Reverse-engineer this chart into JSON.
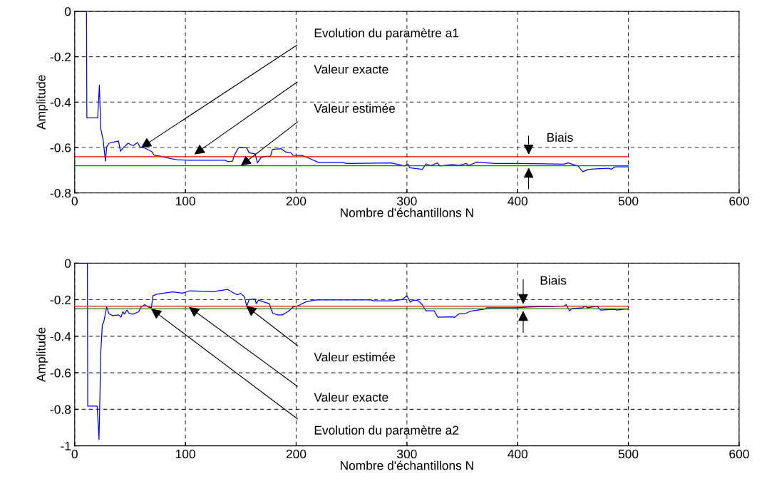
{
  "chart_data": [
    {
      "type": "line",
      "xlabel": "Nombre d'échantillons N",
      "ylabel": "Amplitude",
      "xlim": [
        0,
        600
      ],
      "ylim": [
        -0.8,
        0
      ],
      "xticks": [
        0,
        100,
        200,
        300,
        400,
        500,
        600
      ],
      "yticks": [
        -0.8,
        -0.6,
        -0.4,
        -0.2,
        0
      ],
      "grid": true,
      "legend": false,
      "marker": "none",
      "line_style": "solid",
      "series": [
        {
          "color": "#0000ff",
          "x": [
            0,
            10.7,
            11,
            20.8,
            22.3,
            23.6,
            25.7,
            27.8,
            28.9,
            31,
            35.3,
            39.6,
            41.3,
            43.9,
            48.2,
            52.9,
            56.7,
            58.9,
            63.2,
            69.6,
            71.8,
            78.2,
            86.8,
            93.2,
            103.9,
            136,
            138.2,
            142.5,
            144.2,
            147.8,
            151,
            155.4,
            157.5,
            162.9,
            165,
            168.2,
            172.5,
            176.8,
            178.5,
            186.5,
            190.8,
            195.1,
            197.2,
            205.2,
            211.7,
            220.3,
            241.8,
            246,
            286,
            297.9,
            301,
            302.6,
            308.6,
            314,
            317.2,
            321.5,
            327.5,
            330,
            340.8,
            347.2,
            353.6,
            355.8,
            363.3,
            368.7,
            379.4,
            398.7,
            441.6,
            445.5,
            454.5,
            458.8,
            464.2,
            471.7,
            482.4,
            484.5,
            487.8,
            500
          ],
          "values": [
            0,
            0,
            -0.469,
            -0.469,
            -0.326,
            -0.519,
            -0.566,
            -0.66,
            -0.597,
            -0.581,
            -0.576,
            -0.571,
            -0.616,
            -0.602,
            -0.581,
            -0.592,
            -0.578,
            -0.597,
            -0.602,
            -0.618,
            -0.634,
            -0.639,
            -0.649,
            -0.654,
            -0.656,
            -0.656,
            -0.662,
            -0.66,
            -0.634,
            -0.602,
            -0.599,
            -0.602,
            -0.623,
            -0.628,
            -0.668,
            -0.644,
            -0.639,
            -0.639,
            -0.608,
            -0.605,
            -0.62,
            -0.623,
            -0.634,
            -0.635,
            -0.647,
            -0.666,
            -0.666,
            -0.67,
            -0.668,
            -0.681,
            -0.673,
            -0.689,
            -0.693,
            -0.696,
            -0.672,
            -0.679,
            -0.668,
            -0.681,
            -0.675,
            -0.679,
            -0.67,
            -0.679,
            -0.664,
            -0.666,
            -0.67,
            -0.67,
            -0.673,
            -0.668,
            -0.681,
            -0.706,
            -0.696,
            -0.694,
            -0.691,
            -0.696,
            -0.685,
            -0.685
          ]
        },
        {
          "color": "#ff0000",
          "x": [
            0,
            500
          ],
          "values": [
            -0.64,
            -0.64
          ]
        },
        {
          "color": "#008000",
          "x": [
            0,
            500
          ],
          "values": [
            -0.68,
            -0.68
          ]
        }
      ],
      "annotations": [
        "Evolution du paramètre a1",
        "Valeur exacte",
        "Valeur estimée",
        {
          "text": "Biais",
          "x": 410,
          "y": -0.64
        }
      ]
    },
    {
      "type": "line",
      "xlabel": "Nombre d'échantillons N",
      "ylabel": "Amplitude",
      "xlim": [
        0,
        600
      ],
      "ylim": [
        -1,
        0
      ],
      "xticks": [
        0,
        100,
        200,
        300,
        400,
        500,
        600
      ],
      "yticks": [
        -1,
        -0.8,
        -0.6,
        -0.4,
        -0.2,
        0
      ],
      "grid": true,
      "legend": false,
      "marker": "none",
      "line_style": "solid",
      "series": [
        {
          "color": "#0000ff",
          "x": [
            0,
            11.5,
            11.8,
            20.3,
            22,
            23.6,
            25,
            26.1,
            28.9,
            31,
            34.3,
            39.6,
            41.8,
            43.5,
            45,
            47.1,
            49.3,
            52.5,
            57.8,
            60,
            63.2,
            66.4,
            69.2,
            70.7,
            73.9,
            82.5,
            88.9,
            97.4,
            103.9,
            125.3,
            138.2,
            142.5,
            146.8,
            150,
            153.2,
            155.4,
            157.5,
            162.9,
            163.9,
            166.1,
            170.4,
            175.7,
            178.9,
            183.2,
            187.5,
            192.9,
            197.2,
            202.4,
            208.8,
            217.3,
            267.8,
            270,
            287.1,
            295.7,
            300,
            303.2,
            305.4,
            309.7,
            313.9,
            317.2,
            324.7,
            327.9,
            340.8,
            342.9,
            347.2,
            353.6,
            356.9,
            364.4,
            370.8,
            371.9,
            398.7,
            409.4,
            441.6,
            443.8,
            447,
            449.1,
            458.8,
            461,
            463.1,
            471.7,
            474.9,
            486.7,
            489.9,
            497.4,
            500
          ],
          "values": [
            0,
            0,
            -0.783,
            -0.783,
            -0.965,
            -0.484,
            -0.335,
            -0.326,
            -0.24,
            -0.277,
            -0.287,
            -0.283,
            -0.296,
            -0.266,
            -0.279,
            -0.257,
            -0.275,
            -0.279,
            -0.266,
            -0.24,
            -0.227,
            -0.24,
            -0.244,
            -0.179,
            -0.17,
            -0.162,
            -0.157,
            -0.164,
            -0.151,
            -0.155,
            -0.144,
            -0.16,
            -0.173,
            -0.166,
            -0.183,
            -0.235,
            -0.199,
            -0.196,
            -0.222,
            -0.201,
            -0.212,
            -0.222,
            -0.274,
            -0.283,
            -0.283,
            -0.264,
            -0.24,
            -0.231,
            -0.212,
            -0.201,
            -0.201,
            -0.206,
            -0.206,
            -0.199,
            -0.179,
            -0.214,
            -0.203,
            -0.203,
            -0.227,
            -0.261,
            -0.261,
            -0.296,
            -0.294,
            -0.297,
            -0.277,
            -0.274,
            -0.264,
            -0.257,
            -0.251,
            -0.244,
            -0.244,
            -0.24,
            -0.235,
            -0.227,
            -0.261,
            -0.248,
            -0.244,
            -0.235,
            -0.244,
            -0.235,
            -0.257,
            -0.253,
            -0.257,
            -0.251,
            -0.253
          ]
        },
        {
          "color": "#ff0000",
          "x": [
            0,
            500
          ],
          "values": [
            -0.235,
            -0.235
          ]
        },
        {
          "color": "#008000",
          "x": [
            0,
            500
          ],
          "values": [
            -0.25,
            -0.25
          ]
        }
      ],
      "annotations": [
        {
          "text": "Biais",
          "x": 405,
          "y": -0.235
        },
        "Valeur estimée",
        "Valeur exacte",
        "Evolution du paramètre a2"
      ]
    }
  ]
}
